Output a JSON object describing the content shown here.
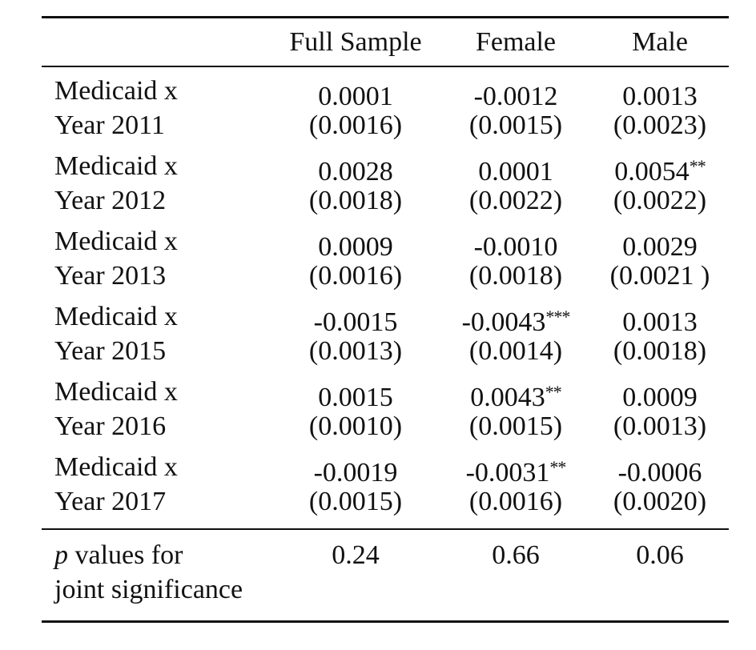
{
  "header": {
    "col1": "",
    "col2": "Full Sample",
    "col3": "Female",
    "col4": "Male"
  },
  "rows": [
    {
      "label_line1": "Medicaid x",
      "label_line2": "Year 2011",
      "full": {
        "coef": "0.0001",
        "stars": "",
        "se": "(0.0016)"
      },
      "female": {
        "coef": "-0.0012",
        "stars": "",
        "se": "(0.0015)"
      },
      "male": {
        "coef": "0.0013",
        "stars": "",
        "se": "(0.0023)"
      }
    },
    {
      "label_line1": "Medicaid x",
      "label_line2": "Year 2012",
      "full": {
        "coef": "0.0028",
        "stars": "",
        "se": "(0.0018)"
      },
      "female": {
        "coef": "0.0001",
        "stars": "",
        "se": "(0.0022)"
      },
      "male": {
        "coef": "0.0054",
        "stars": "**",
        "se": "(0.0022)"
      }
    },
    {
      "label_line1": "Medicaid x",
      "label_line2": "Year 2013",
      "full": {
        "coef": "0.0009",
        "stars": "",
        "se": "(0.0016)"
      },
      "female": {
        "coef": "-0.0010",
        "stars": "",
        "se": "(0.0018)"
      },
      "male": {
        "coef": "0.0029",
        "stars": "",
        "se": "(0.0021 )"
      }
    },
    {
      "label_line1": "Medicaid x",
      "label_line2": "Year 2015",
      "full": {
        "coef": "-0.0015",
        "stars": "",
        "se": "(0.0013)"
      },
      "female": {
        "coef": "-0.0043",
        "stars": "***",
        "se": "(0.0014)"
      },
      "male": {
        "coef": "0.0013",
        "stars": "",
        "se": "(0.0018)"
      }
    },
    {
      "label_line1": "Medicaid x",
      "label_line2": "Year 2016",
      "full": {
        "coef": "0.0015",
        "stars": "",
        "se": "(0.0010)"
      },
      "female": {
        "coef": "0.0043",
        "stars": "**",
        "se": "(0.0015)"
      },
      "male": {
        "coef": "0.0009",
        "stars": "",
        "se": "(0.0013)"
      }
    },
    {
      "label_line1": "Medicaid x",
      "label_line2": "Year 2017",
      "full": {
        "coef": "-0.0019",
        "stars": "",
        "se": "(0.0015)"
      },
      "female": {
        "coef": "-0.0031",
        "stars": "**",
        "se": "(0.0016)"
      },
      "male": {
        "coef": "-0.0006",
        "stars": "",
        "se": "(0.0020)"
      }
    }
  ],
  "footer": {
    "label_p": "p",
    "label_line1_rest": " values for",
    "label_line2": "joint significance",
    "full": "0.24",
    "female": "0.66",
    "male": "0.06"
  }
}
